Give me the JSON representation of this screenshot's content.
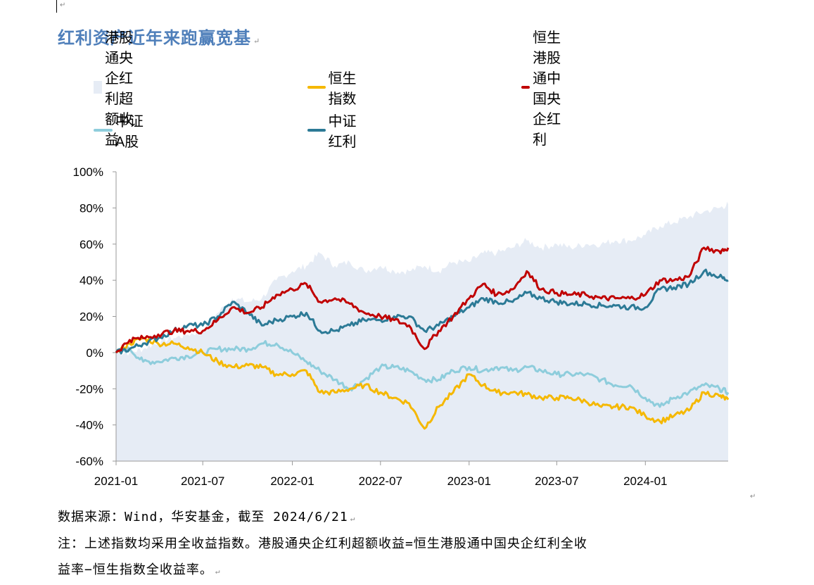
{
  "title": "红利资产近年来跑赢宽基",
  "para_mark": "↵",
  "legend": [
    {
      "label": "港股通央企红利超额收益",
      "type": "area",
      "color": "#e6ecf5"
    },
    {
      "label": "恒生指数",
      "type": "line",
      "color": "#f5b800"
    },
    {
      "label": "恒生港股通中国央企红利",
      "type": "line",
      "color": "#c00000"
    },
    {
      "label": "中证A股",
      "type": "line",
      "color": "#8ecddc"
    },
    {
      "label": "中证红利",
      "type": "line",
      "color": "#2c7a96"
    }
  ],
  "footer": {
    "source": "数据来源：Wind，华安基金，截至 2024/6/21",
    "note1": "注：上述指数均采用全收益指数。港股通央企红利超额收益=恒生港股通中国央企红利全收",
    "note2": "益率−恒生指数全收益率。"
  },
  "chart_data": {
    "type": "line",
    "x_labels": [
      "2021-01",
      "2021-07",
      "2022-01",
      "2022-07",
      "2023-01",
      "2023-07",
      "2024-01"
    ],
    "x": [
      "2021-01-04",
      "2021-02-01",
      "2021-03-01",
      "2021-04-01",
      "2021-05-03",
      "2021-06-01",
      "2021-07-02",
      "2021-08-02",
      "2021-09-01",
      "2021-10-04",
      "2021-11-01",
      "2021-12-01",
      "2022-01-03",
      "2022-02-01",
      "2022-03-01",
      "2022-04-01",
      "2022-05-02",
      "2022-06-01",
      "2022-07-04",
      "2022-08-01",
      "2022-09-01",
      "2022-10-03",
      "2022-11-01",
      "2022-12-01",
      "2023-01-03",
      "2023-02-01",
      "2023-03-01",
      "2023-04-03",
      "2023-05-02",
      "2023-06-01",
      "2023-07-03",
      "2023-08-01",
      "2023-09-01",
      "2023-10-03",
      "2023-11-01",
      "2023-12-01",
      "2024-01-02",
      "2024-02-01",
      "2024-03-01",
      "2024-04-01",
      "2024-05-02",
      "2024-06-03",
      "2024-06-21"
    ],
    "ylim": [
      -60,
      100
    ],
    "y_ticks": [
      -60,
      -40,
      -20,
      0,
      20,
      40,
      60,
      80,
      100
    ],
    "y_tick_format": "%",
    "series": [
      {
        "name": "港股通央企红利超额收益",
        "type": "area",
        "values": [
          0,
          0,
          2,
          6,
          8,
          10,
          12,
          22,
          30,
          28,
          30,
          40,
          45,
          48,
          55,
          48,
          50,
          45,
          48,
          45,
          45,
          48,
          45,
          50,
          50,
          55,
          55,
          58,
          62,
          58,
          60,
          58,
          60,
          60,
          62,
          62,
          65,
          70,
          72,
          75,
          78,
          80,
          82
        ]
      },
      {
        "name": "恒生指数",
        "values": [
          0,
          5,
          8,
          5,
          5,
          3,
          0,
          -5,
          -8,
          -7,
          -8,
          -12,
          -12,
          -10,
          -22,
          -22,
          -20,
          -18,
          -22,
          -25,
          -28,
          -42,
          -30,
          -22,
          -12,
          -18,
          -22,
          -22,
          -23,
          -25,
          -25,
          -25,
          -27,
          -30,
          -30,
          -30,
          -35,
          -38,
          -35,
          -32,
          -22,
          -24,
          -26
        ]
      },
      {
        "name": "恒生港股通中国央企红利",
        "values": [
          0,
          7,
          8,
          10,
          12,
          12,
          12,
          18,
          25,
          22,
          25,
          32,
          35,
          38,
          28,
          30,
          27,
          22,
          20,
          18,
          15,
          2,
          12,
          20,
          30,
          38,
          32,
          35,
          45,
          35,
          33,
          32,
          32,
          30,
          30,
          30,
          32,
          40,
          40,
          42,
          58,
          56,
          58
        ]
      },
      {
        "name": "中证A股",
        "values": [
          0,
          2,
          -5,
          -5,
          -3,
          -2,
          0,
          2,
          2,
          2,
          5,
          5,
          0,
          -5,
          -10,
          -15,
          -20,
          -15,
          -8,
          -8,
          -10,
          -15,
          -15,
          -10,
          -8,
          -10,
          -8,
          -10,
          -8,
          -10,
          -12,
          -12,
          -12,
          -15,
          -18,
          -18,
          -25,
          -30,
          -25,
          -22,
          -18,
          -20,
          -22
        ]
      },
      {
        "name": "中证红利",
        "values": [
          0,
          2,
          5,
          8,
          12,
          15,
          15,
          20,
          28,
          22,
          15,
          18,
          20,
          22,
          12,
          12,
          15,
          18,
          18,
          20,
          20,
          12,
          15,
          20,
          25,
          30,
          28,
          28,
          33,
          30,
          28,
          27,
          27,
          26,
          26,
          25,
          25,
          35,
          36,
          38,
          45,
          42,
          40
        ]
      }
    ]
  }
}
